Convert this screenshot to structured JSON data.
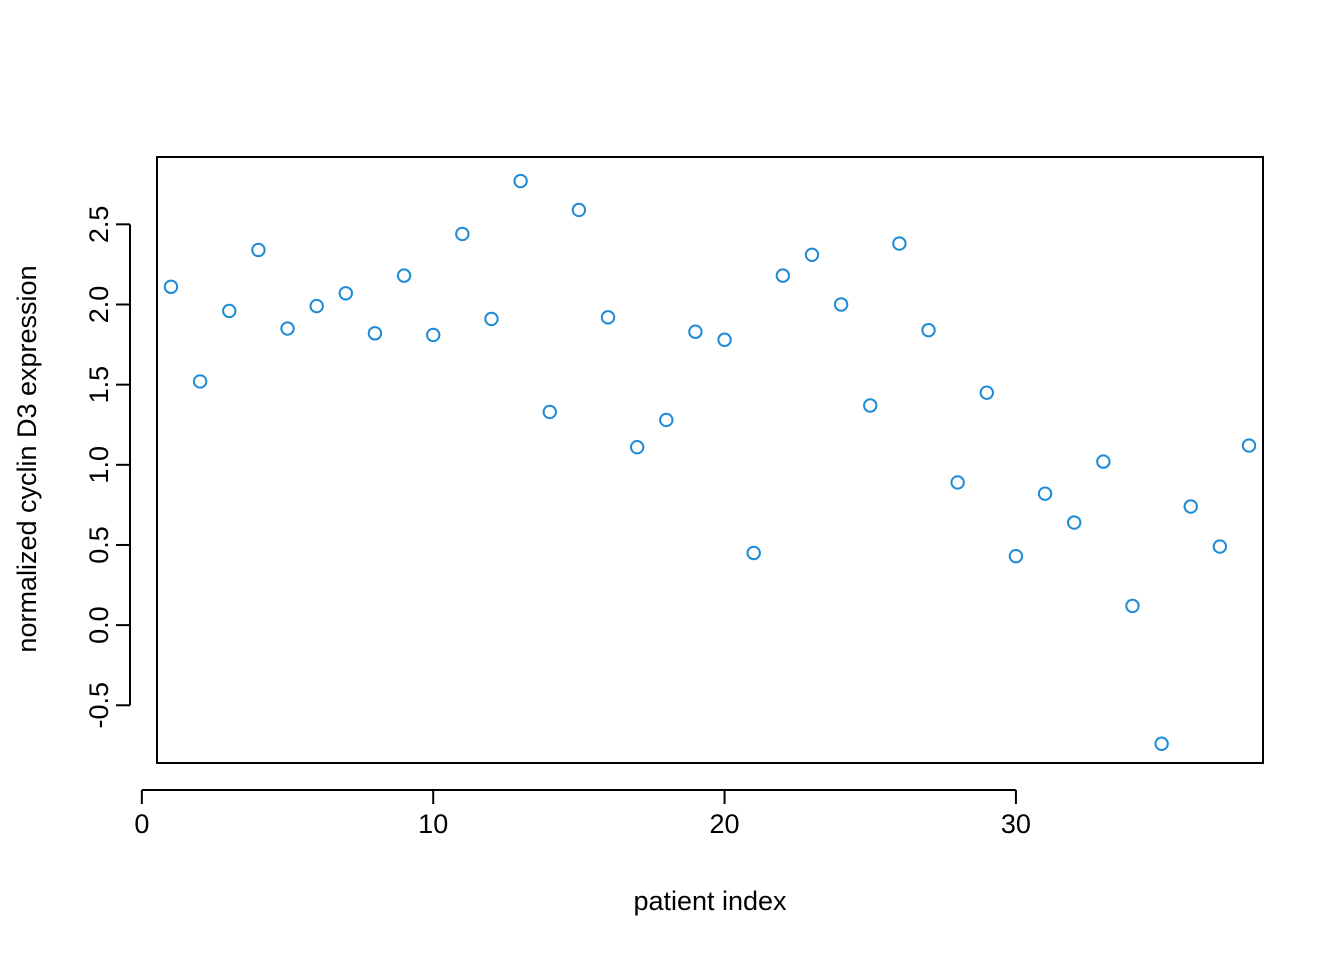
{
  "chart_data": {
    "type": "scatter",
    "title": "",
    "xlabel": "patient index",
    "ylabel": "normalized cyclin D3 expression",
    "xlim": [
      0.52,
      38.48
    ],
    "ylim": [
      -0.86,
      2.92
    ],
    "x_ticks": [
      0,
      10,
      20,
      30
    ],
    "y_ticks": [
      -0.5,
      0.0,
      0.5,
      1.0,
      1.5,
      2.0,
      2.5
    ],
    "x_tick_labels": [
      "0",
      "10",
      "20",
      "30"
    ],
    "y_tick_labels": [
      "-0.5",
      "0.0",
      "0.5",
      "1.0",
      "1.5",
      "2.0",
      "2.5"
    ],
    "grid": false,
    "legend": "none",
    "point_color": "#1f8bd6",
    "series": [
      {
        "x": [
          1,
          2,
          3,
          4,
          5,
          6,
          7,
          8,
          9,
          10,
          11,
          12,
          13,
          14,
          15,
          16,
          17,
          18,
          19,
          20,
          21,
          22,
          23,
          24,
          25,
          26,
          27,
          28,
          29,
          30,
          31,
          32,
          33,
          34,
          35,
          36,
          37,
          38
        ],
        "y": [
          2.11,
          1.52,
          1.96,
          2.34,
          1.85,
          1.99,
          2.07,
          1.82,
          2.18,
          1.81,
          2.44,
          1.91,
          2.77,
          1.33,
          2.59,
          1.92,
          1.11,
          1.28,
          1.83,
          1.78,
          0.45,
          2.18,
          2.31,
          2.0,
          1.37,
          2.38,
          1.84,
          0.89,
          1.45,
          0.43,
          0.82,
          0.64,
          1.02,
          0.12,
          -0.74,
          0.74,
          0.49,
          1.12
        ]
      }
    ]
  }
}
